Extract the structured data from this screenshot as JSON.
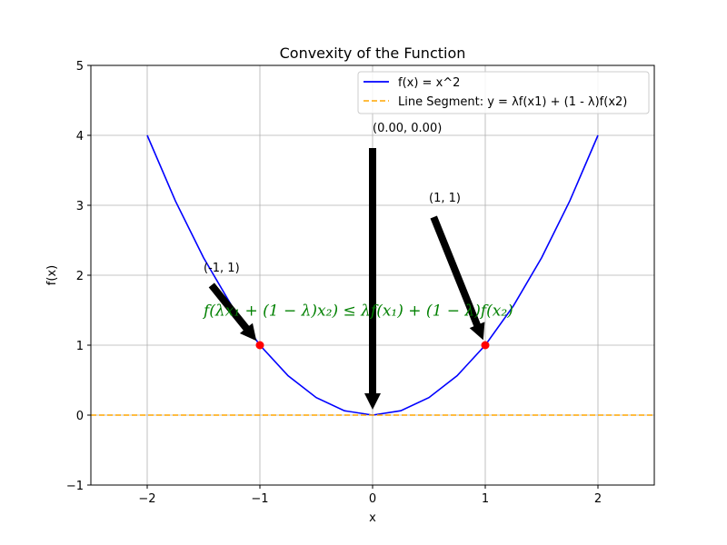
{
  "chart_data": {
    "type": "line",
    "title": "Convexity of the Function",
    "xlabel": "x",
    "ylabel": "f(x)",
    "xlim": [
      -2.5,
      2.5
    ],
    "ylim": [
      -1,
      5
    ],
    "x_ticks": [
      -2,
      -1,
      0,
      1,
      2
    ],
    "y_ticks": [
      -1,
      0,
      1,
      2,
      3,
      4,
      5
    ],
    "x_tick_labels": [
      "−2",
      "−1",
      "0",
      "1",
      "2"
    ],
    "y_tick_labels": [
      "−1",
      "0",
      "1",
      "2",
      "3",
      "4",
      "5"
    ],
    "grid": true,
    "legend_position": "top-right",
    "series": [
      {
        "name": "f(x) = x^2",
        "style": "solid",
        "color": "#0000ff",
        "x": [
          -2,
          -1.75,
          -1.5,
          -1.25,
          -1,
          -0.75,
          -0.5,
          -0.25,
          0,
          0.25,
          0.5,
          0.75,
          1,
          1.25,
          1.5,
          1.75,
          2
        ],
        "y": [
          4,
          3.0625,
          2.25,
          1.5625,
          1,
          0.5625,
          0.25,
          0.0625,
          0,
          0.0625,
          0.25,
          0.5625,
          1,
          1.5625,
          2.25,
          3.0625,
          4
        ]
      },
      {
        "name": "Line Segment: y = λf(x1) + (1 - λ)f(x2)",
        "style": "dashed",
        "color": "#ffa500",
        "x": [
          -2.5,
          2.5
        ],
        "y": [
          0,
          0
        ]
      }
    ],
    "points": [
      {
        "x": -1,
        "y": 1,
        "color": "#ff0000"
      },
      {
        "x": 1,
        "y": 1,
        "color": "#ff0000"
      }
    ],
    "annotations": [
      {
        "text": "(-1, 1)",
        "text_x": -1.5,
        "text_y": 2,
        "target_x": -1,
        "target_y": 1
      },
      {
        "text": "(0.00, 0.00)",
        "text_x": 0,
        "text_y": 4,
        "target_x": 0,
        "target_y": 0
      },
      {
        "text": "(1, 1)",
        "text_x": 0.5,
        "text_y": 3,
        "target_x": 1,
        "target_y": 1
      }
    ],
    "formula": {
      "text": "f(λx₁ + (1 − λ)x₂) ≤ λf(x₁) + (1 − λ)f(x₂)",
      "x": -1.5,
      "y": 1.5,
      "color": "#008000"
    }
  }
}
